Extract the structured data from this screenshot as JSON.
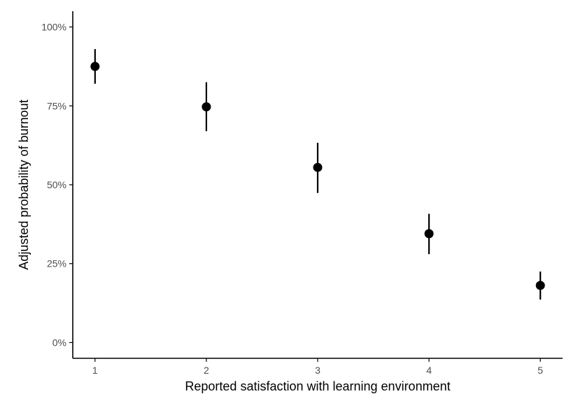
{
  "chart_data": {
    "type": "scatter",
    "subtype": "point-range",
    "title": "",
    "xlabel": "Reported satisfaction with learning environment",
    "ylabel": "Adjusted probability of burnout",
    "x": [
      1,
      2,
      3,
      4,
      5
    ],
    "x_tick_labels": [
      "1",
      "2",
      "3",
      "4",
      "5"
    ],
    "y_tick_values": [
      0,
      0.25,
      0.5,
      0.75,
      1.0
    ],
    "y_tick_labels": [
      "0%",
      "25%",
      "50%",
      "75%",
      "100%"
    ],
    "xlim": [
      0.8,
      5.2
    ],
    "ylim": [
      -0.05,
      1.05
    ],
    "series": [
      {
        "estimate": [
          0.875,
          0.747,
          0.555,
          0.345,
          0.181
        ],
        "lower": [
          0.82,
          0.67,
          0.474,
          0.28,
          0.136
        ],
        "upper": [
          0.93,
          0.825,
          0.633,
          0.408,
          0.225
        ]
      }
    ],
    "grid": false,
    "legend": "none",
    "point_color": "#000000",
    "axis_color": "#000000",
    "tick_label_color": "#4d4d4d"
  }
}
